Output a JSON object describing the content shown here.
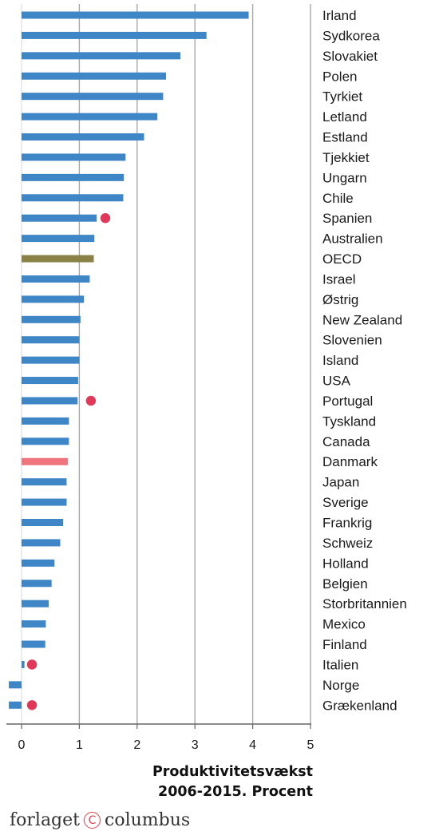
{
  "chart_data": {
    "type": "bar",
    "orientation": "horizontal",
    "xlabel_lines": [
      "Produktivitetsvækst",
      "2006-2015. Procent"
    ],
    "xlim": [
      0,
      5
    ],
    "xticks": [
      "0",
      "1",
      "2",
      "3",
      "4",
      "5"
    ],
    "grid": true,
    "colors": {
      "bar": "#3f86c6",
      "oecd": "#8a8147",
      "danmark": "#ef7480",
      "marker": "#e03858",
      "grid": "#a8a8a8"
    },
    "categories": [
      "Irland",
      "Sydkorea",
      "Slovakiet",
      "Polen",
      "Tyrkiet",
      "Letland",
      "Estland",
      "Tjekkiet",
      "Ungarn",
      "Chile",
      "Spanien",
      "Australien",
      "OECD",
      "Israel",
      "Østrig",
      "New Zealand",
      "Slovenien",
      "Island",
      "USA",
      "Portugal",
      "Tyskland",
      "Canada",
      "Danmark",
      "Japan",
      "Sverige",
      "Frankrig",
      "Schweiz",
      "Holland",
      "Belgien",
      "Storbritannien",
      "Mexico",
      "Finland",
      "Italien",
      "Norge",
      "Grækenland"
    ],
    "values": [
      3.93,
      3.2,
      2.75,
      2.5,
      2.45,
      2.35,
      2.12,
      1.8,
      1.77,
      1.76,
      1.3,
      1.26,
      1.25,
      1.18,
      1.08,
      1.02,
      1.0,
      1.0,
      0.98,
      0.97,
      0.82,
      0.82,
      0.8,
      0.78,
      0.78,
      0.72,
      0.67,
      0.57,
      0.52,
      0.47,
      0.42,
      0.41,
      0.05,
      -0.22,
      -0.22
    ],
    "markers": [
      {
        "category": "Spanien",
        "value": 1.45
      },
      {
        "category": "Portugal",
        "value": 1.2
      },
      {
        "category": "Italien",
        "value": 0.18
      },
      {
        "category": "Grækenland",
        "value": 0.18
      }
    ]
  },
  "publisher": {
    "left": "forlaget",
    "symbol": "C",
    "right": "columbus"
  }
}
